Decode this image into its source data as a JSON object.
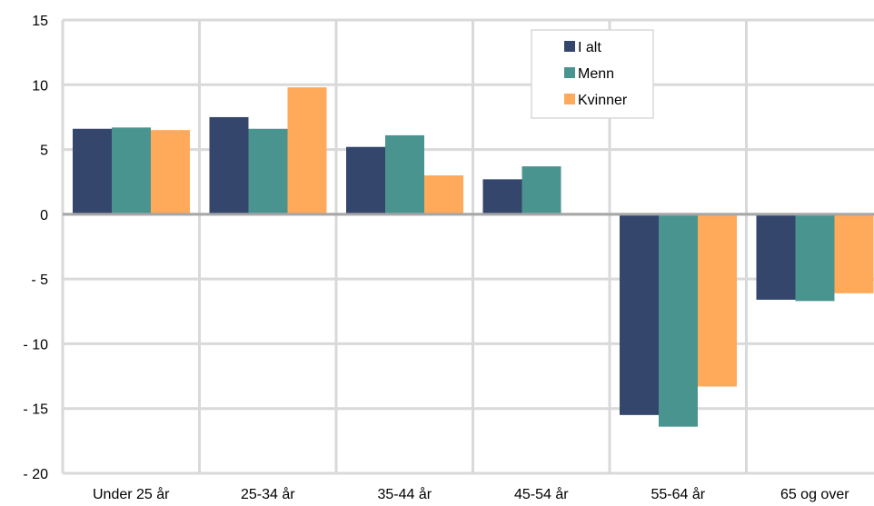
{
  "chart_data": {
    "type": "bar",
    "title": "",
    "xlabel": "",
    "ylabel": "",
    "categories": [
      "Under 25 år",
      "25-34 år",
      "35-44 år",
      "45-54 år",
      "55-64 år",
      "65 og over"
    ],
    "series": [
      {
        "name": "I alt",
        "color": "#34466b",
        "values": [
          6.6,
          7.5,
          5.2,
          2.7,
          -15.5,
          -6.6
        ]
      },
      {
        "name": "Menn",
        "color": "#4a9490",
        "values": [
          6.7,
          6.6,
          6.1,
          3.7,
          -16.4,
          -6.7
        ]
      },
      {
        "name": "Kvinner",
        "color": "#ffa95a",
        "values": [
          6.5,
          9.8,
          3.0,
          null,
          -13.3,
          -6.1
        ]
      }
    ],
    "ylim": [
      -20,
      15
    ],
    "yticks": [
      15,
      10,
      5,
      0,
      -5,
      -10,
      -15,
      -20
    ],
    "ytick_labels": [
      "15",
      "10",
      "5",
      "0",
      "- 5",
      "- 10",
      "- 15",
      "- 20"
    ],
    "grid": true,
    "legend_position": "top-center-right"
  }
}
